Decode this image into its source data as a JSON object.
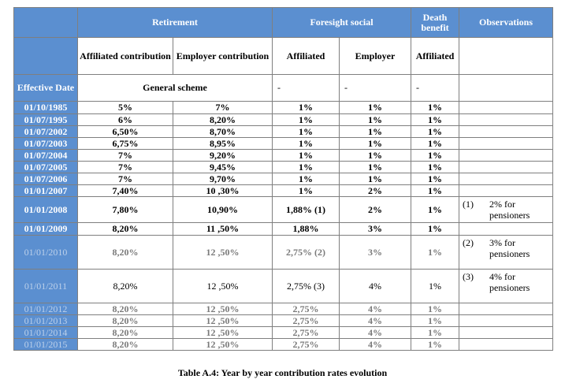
{
  "headers": {
    "retirement": "Retirement",
    "foresight": "Foresight social",
    "death": "Death benefit",
    "observations": "Observations",
    "affiliated_contribution": "Affiliated contribution",
    "employer_contribution": "Employer contribution",
    "affiliated": "Affiliated",
    "employer": "Employer",
    "death_affiliated": "Affiliated",
    "effective_date": "Effective Date",
    "general_scheme": "General scheme",
    "dash1": "-",
    "dash2": "-",
    "dash3": "-"
  },
  "rows": [
    {
      "date": "01/10/1985",
      "aff": "5%",
      "emp": "7%",
      "fs_aff": "1%",
      "fs_emp": "1%",
      "death": "1%"
    },
    {
      "date": "01/07/1995",
      "aff": "6%",
      "emp": "8,20%",
      "fs_aff": "1%",
      "fs_emp": "1%",
      "death": "1%"
    },
    {
      "date": "01/07/2002",
      "aff": "6,50%",
      "emp": "8,70%",
      "fs_aff": "1%",
      "fs_emp": "1%",
      "death": "1%"
    },
    {
      "date": "01/07/2003",
      "aff": "6,75%",
      "emp": "8,95%",
      "fs_aff": "1%",
      "fs_emp": "1%",
      "death": "1%"
    },
    {
      "date": "01/07/2004",
      "aff": "7%",
      "emp": "9,20%",
      "fs_aff": "1%",
      "fs_emp": "1%",
      "death": "1%"
    },
    {
      "date": "01/07/2005",
      "aff": "7%",
      "emp": "9,45%",
      "fs_aff": "1%",
      "fs_emp": "1%",
      "death": "1%"
    },
    {
      "date": "01/07/2006",
      "aff": "7%",
      "emp": "9,70%",
      "fs_aff": "1%",
      "fs_emp": "1%",
      "death": "1%"
    },
    {
      "date": "01/01/2007",
      "aff": "7,40%",
      "emp": "10 ,30%",
      "fs_aff": "1%",
      "fs_emp": "2%",
      "death": "1%"
    },
    {
      "date": "01/01/2008",
      "aff": "7,80%",
      "emp": "10,90%",
      "fs_aff": "1,88% (1)",
      "fs_emp": "2%",
      "death": "1%",
      "obs_num": "(1)",
      "obs_txt": "2% for pensioners"
    },
    {
      "date": "01/01/2009",
      "aff": "8,20%",
      "emp": "11 ,50%",
      "fs_aff": "1,88%",
      "fs_emp": "3%",
      "death": "1%"
    },
    {
      "date": "01/01/2010",
      "aff": "8,20%",
      "emp": "12 ,50%",
      "fs_aff": "2,75% (2)",
      "fs_emp": "3%",
      "death": "1%",
      "obs_num": "(2)",
      "obs_txt": "3% for pensioners"
    },
    {
      "date": "01/01/2011",
      "aff": "8,20%",
      "emp": "12 ,50%",
      "fs_aff": "2,75% (3)",
      "fs_emp": "4%",
      "death": "1%",
      "obs_num": "(3)",
      "obs_txt": "4% for pensioners"
    },
    {
      "date": "01/01/2012",
      "aff": "8,20%",
      "emp": "12 ,50%",
      "fs_aff": "2,75%",
      "fs_emp": "4%",
      "death": "1%"
    },
    {
      "date": "01/01/2013",
      "aff": "8,20%",
      "emp": "12 ,50%",
      "fs_aff": "2,75%",
      "fs_emp": "4%",
      "death": "1%"
    },
    {
      "date": "01/01/2014",
      "aff": "8,20%",
      "emp": "12 ,50%",
      "fs_aff": "2,75%",
      "fs_emp": "4%",
      "death": "1%"
    },
    {
      "date": "01/01/2015",
      "aff": "8,20%",
      "emp": "12 ,50%",
      "fs_aff": "2,75%",
      "fs_emp": "4%",
      "death": "1%"
    }
  ],
  "caption": "Table A.4: Year by year contribution rates evolution",
  "colors": {
    "header_blue": "#5b8fd0",
    "gray_text": "#7a7a7a"
  }
}
